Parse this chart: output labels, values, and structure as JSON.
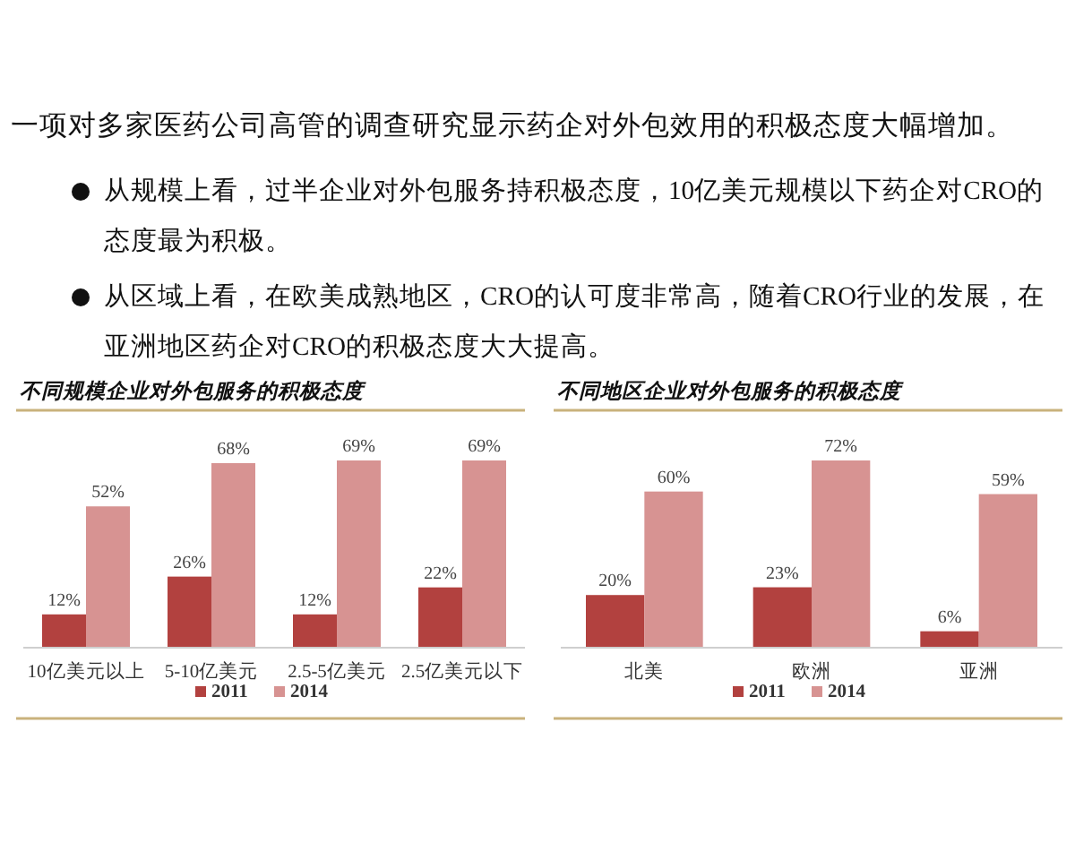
{
  "chart_data": [
    {
      "type": "other",
      "title": "一项对多家医药公司高管的调查研究显示药企对外包效用的积极态度大幅增加。",
      "annotations": [
        "从规模上看，过半企业对外包服务持积极态度，10亿美元规模以下药企对CRO的态度最为积极。",
        "从区域上看，在欧美成熟地区，CRO的认可度非常高，随着CRO行业的发展，在亚洲地区药企对CRO的积极态度大大提高。"
      ]
    },
    {
      "type": "bar",
      "title": "不同规模企业对外包服务的积极态度",
      "categories": [
        "10亿美元以上",
        "5-10亿美元",
        "2.5-5亿美元",
        "2.5亿美元以下"
      ],
      "series": [
        {
          "name": "2011",
          "color": "#b2413f",
          "values": [
            12,
            26,
            12,
            22
          ],
          "value_labels": [
            "12%",
            "26%",
            "12%",
            "22%"
          ]
        },
        {
          "name": "2014",
          "color": "#d79392",
          "values": [
            52,
            68,
            69,
            69
          ],
          "value_labels": [
            "52%",
            "68%",
            "69%",
            "69%"
          ]
        }
      ],
      "legend": "bottom"
    },
    {
      "type": "bar",
      "title": "不同地区企业对外包服务的积极态度",
      "categories": [
        "北美",
        "欧洲",
        "亚洲"
      ],
      "series": [
        {
          "name": "2011",
          "color": "#b2413f",
          "values": [
            20,
            23,
            6
          ],
          "value_labels": [
            "20%",
            "23%",
            "6%"
          ]
        },
        {
          "name": "2014",
          "color": "#d79392",
          "values": [
            60,
            72,
            59
          ],
          "value_labels": [
            "60%",
            "72%",
            "59%"
          ]
        }
      ],
      "legend": "bottom"
    }
  ]
}
